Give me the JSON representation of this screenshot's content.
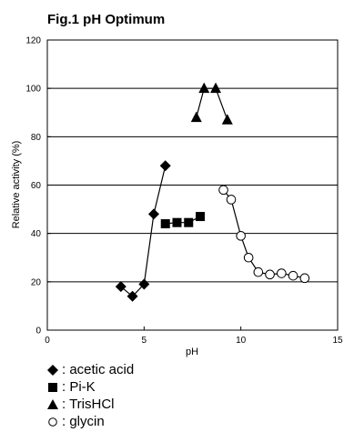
{
  "chart_data": {
    "type": "scatter",
    "title": "Fig.1 pH Optimum",
    "xlabel": "pH",
    "ylabel": "Relative activity (%)",
    "xlim": [
      0,
      15
    ],
    "ylim": [
      0,
      120
    ],
    "xticks": [
      "0",
      "5",
      "10",
      "15"
    ],
    "yticks": [
      "0",
      "20",
      "40",
      "60",
      "80",
      "100",
      "120"
    ],
    "grid": "horizontal",
    "legend_position": "bottom-left, below plot",
    "series": [
      {
        "name": "acetic acid",
        "marker": "diamond",
        "color": "#000000",
        "x": [
          3.8,
          4.4,
          5.0,
          5.5,
          6.1
        ],
        "y": [
          18,
          14,
          19,
          48,
          68
        ]
      },
      {
        "name": "Pi-K",
        "marker": "square",
        "color": "#000000",
        "x": [
          6.1,
          6.7,
          7.3,
          7.9
        ],
        "y": [
          44,
          44.5,
          44.5,
          47
        ]
      },
      {
        "name": "TrisHCl",
        "marker": "triangle",
        "color": "#000000",
        "x": [
          7.7,
          8.1,
          8.7,
          9.3
        ],
        "y": [
          88,
          100,
          100,
          87
        ]
      },
      {
        "name": "glycin",
        "marker": "circle-open",
        "color": "#000000",
        "x": [
          9.1,
          9.5,
          10.0,
          10.4,
          10.9,
          11.5,
          12.1,
          12.7,
          13.3
        ],
        "y": [
          58,
          54,
          39,
          30,
          24,
          23,
          23.5,
          22.5,
          21.5
        ]
      }
    ]
  },
  "legend": [
    {
      "label": ": acetic acid",
      "marker": "diamond"
    },
    {
      "label": ": Pi-K",
      "marker": "square"
    },
    {
      "label": ": TrisHCl",
      "marker": "triangle"
    },
    {
      "label": ": glycin",
      "marker": "circle-open"
    }
  ]
}
